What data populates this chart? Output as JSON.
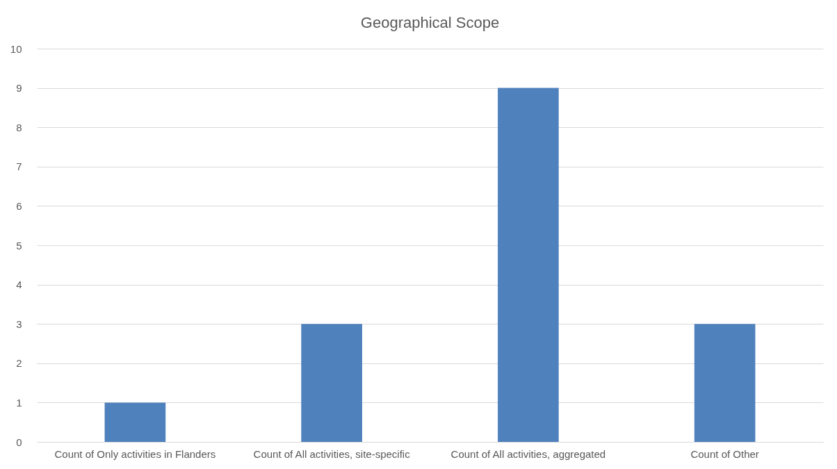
{
  "chart_data": {
    "type": "bar",
    "title": "Geographical Scope",
    "categories": [
      "Count of Only activities in Flanders",
      "Count of All activities, site-specific",
      "Count of All activities, aggregated",
      "Count of Other"
    ],
    "values": [
      1,
      3,
      9,
      3
    ],
    "color": "#4f81bd",
    "ylim": [
      0,
      10
    ],
    "yticks": [
      0,
      1,
      2,
      3,
      4,
      5,
      6,
      7,
      8,
      9,
      10
    ],
    "grid": "y"
  }
}
